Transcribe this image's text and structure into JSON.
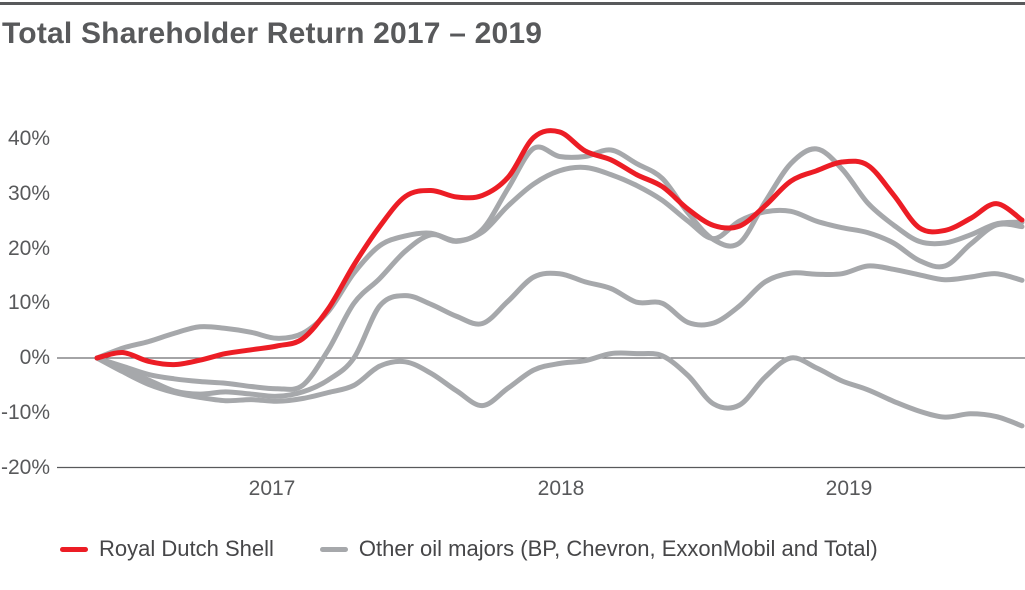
{
  "page": {
    "title": "Total Shareholder Return 2017 – 2019"
  },
  "chart_data": {
    "type": "line",
    "title": "Total Shareholder Return 2017 – 2019",
    "x_unit": "months from Jan 2017",
    "x_axis": {
      "labels": [
        "2017",
        "2018",
        "2019"
      ]
    },
    "y_axis": {
      "ticks": [
        {
          "label": "40%",
          "value": 40
        },
        {
          "label": "30%",
          "value": 30
        },
        {
          "label": "20%",
          "value": 20
        },
        {
          "label": "10%",
          "value": 10
        },
        {
          "label": "0%",
          "value": 0
        },
        {
          "label": "-10%",
          "value": -10
        },
        {
          "label": "-20%",
          "value": -20
        }
      ]
    },
    "ylim": [
      -20,
      40
    ],
    "grid": "zero-line-only",
    "zero_line_color": "#6d6e71",
    "baseline_color": "#58595b",
    "series": [
      {
        "name": "Royal Dutch Shell",
        "color": "#ec1d25",
        "width": 5,
        "values_pct": [
          0,
          1.0,
          -0.6,
          -1.2,
          -0.4,
          0.8,
          1.5,
          2.2,
          3.5,
          9.0,
          17.0,
          24.0,
          29.5,
          30.6,
          29.4,
          29.7,
          33.0,
          40.3,
          41.3,
          37.8,
          36.2,
          33.5,
          31.3,
          27.2,
          24.2,
          24.1,
          27.8,
          32.3,
          34.2,
          35.8,
          35.2,
          29.8,
          23.8,
          23.3,
          25.5,
          28.2,
          25.2
        ]
      },
      {
        "name": "Other oil major 1",
        "color": "#a6a8ab",
        "width": 5,
        "values_pct": [
          0,
          1.8,
          3.0,
          4.5,
          5.7,
          5.4,
          4.7,
          3.6,
          4.5,
          8.5,
          15.5,
          20.5,
          22.3,
          22.8,
          21.3,
          23.5,
          31.0,
          38.3,
          36.8,
          36.8,
          38.0,
          35.5,
          32.8,
          26.5,
          21.6,
          21.0,
          28.5,
          35.5,
          38.2,
          34.5,
          28.3,
          24.3,
          21.3,
          21.0,
          22.5,
          24.5,
          24.8
        ]
      },
      {
        "name": "Other oil major 2",
        "color": "#a6a8ab",
        "width": 5,
        "values_pct": [
          0,
          -1.5,
          -3.0,
          -3.8,
          -4.3,
          -4.6,
          -5.2,
          -5.6,
          -5.0,
          1.5,
          10.0,
          14.5,
          19.5,
          22.5,
          21.4,
          23.0,
          27.8,
          31.8,
          34.2,
          34.8,
          33.5,
          31.5,
          28.8,
          25.0,
          21.8,
          25.0,
          26.7,
          26.8,
          25.0,
          23.8,
          22.9,
          21.0,
          17.8,
          16.8,
          20.8,
          24.3,
          24.0
        ]
      },
      {
        "name": "Other oil major 3",
        "color": "#a6a8ab",
        "width": 5,
        "values_pct": [
          0,
          -2.0,
          -4.0,
          -6.0,
          -6.6,
          -6.2,
          -6.6,
          -7.0,
          -6.2,
          -4.0,
          0.0,
          9.5,
          11.4,
          9.8,
          7.6,
          6.3,
          10.4,
          14.8,
          15.4,
          13.9,
          12.7,
          10.2,
          10.0,
          6.5,
          6.4,
          9.5,
          13.9,
          15.5,
          15.3,
          15.4,
          16.8,
          16.2,
          15.2,
          14.3,
          14.8,
          15.4,
          14.2
        ]
      },
      {
        "name": "Other oil major 4",
        "color": "#a6a8ab",
        "width": 5,
        "values_pct": [
          0,
          -2.5,
          -4.8,
          -6.3,
          -7.2,
          -7.8,
          -7.6,
          -7.9,
          -7.4,
          -6.3,
          -5.0,
          -1.5,
          -0.7,
          -2.8,
          -6.0,
          -8.7,
          -5.5,
          -2.2,
          -1.0,
          -0.5,
          0.8,
          0.8,
          0.4,
          -3.2,
          -8.4,
          -8.6,
          -3.5,
          0.0,
          -1.8,
          -4.2,
          -5.8,
          -7.9,
          -9.7,
          -10.8,
          -10.2,
          -10.7,
          -12.4
        ]
      }
    ],
    "legend": [
      {
        "label": "Royal Dutch Shell",
        "color": "#ec1d25"
      },
      {
        "label": "Other oil majors (BP, Chevron, ExxonMobil and Total)",
        "color": "#a6a8ab"
      }
    ]
  }
}
